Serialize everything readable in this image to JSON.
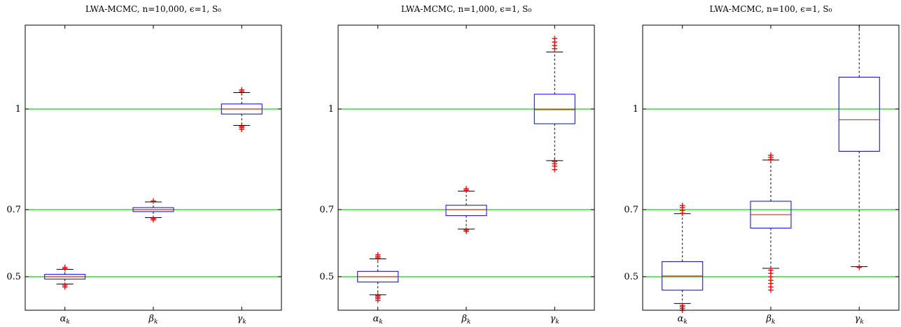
{
  "figure": {
    "panels": [
      {
        "title": "LWA-MCMC, n=10,000, ϵ=1, S₀"
      },
      {
        "title": "LWA-MCMC, n=1,000, ϵ=1, S₀"
      },
      {
        "title": "LWA-MCMC, n=100, ϵ=1, S₀"
      }
    ]
  },
  "colors": {
    "box": "#0000ff",
    "median": "#ff0000",
    "reference_line": "#00dd00",
    "outlier": "#ff0000",
    "whisker": "#000000"
  },
  "chart_data": [
    {
      "type": "box",
      "title": "LWA-MCMC, n=10,000, ϵ=1, S₀",
      "categories": [
        "αk",
        "βk",
        "γk"
      ],
      "yticks": [
        0.5,
        0.7,
        1
      ],
      "ytick_labels": [
        "0.5",
        "0.7",
        "1"
      ],
      "ylim": [
        0.4,
        1.25
      ],
      "reference_lines": [
        0.5,
        0.7,
        1
      ],
      "grid": false,
      "boxes": [
        {
          "label": "αk",
          "whisker_low": 0.478,
          "q1": 0.493,
          "median": 0.5,
          "q3": 0.507,
          "whisker_high": 0.522,
          "outliers_low": [
            0.47,
            0.475
          ],
          "outliers_high": [
            0.524,
            0.528
          ]
        },
        {
          "label": "βk",
          "whisker_low": 0.676,
          "q1": 0.694,
          "median": 0.7,
          "q3": 0.706,
          "whisker_high": 0.723,
          "outliers_low": [
            0.67,
            0.674
          ],
          "outliers_high": [
            0.726
          ]
        },
        {
          "label": "γk",
          "whisker_low": 0.951,
          "q1": 0.985,
          "median": 1.0,
          "q3": 1.015,
          "whisker_high": 1.049,
          "outliers_low": [
            0.94,
            0.945,
            0.949
          ],
          "outliers_high": [
            1.052,
            1.057
          ]
        }
      ]
    },
    {
      "type": "box",
      "title": "LWA-MCMC, n=1,000, ϵ=1, S₀",
      "categories": [
        "αk",
        "βk",
        "γk"
      ],
      "yticks": [
        0.5,
        0.7,
        1
      ],
      "ytick_labels": [
        "0.5",
        "0.7",
        "1"
      ],
      "ylim": [
        0.4,
        1.25
      ],
      "reference_lines": [
        0.5,
        0.7,
        1
      ],
      "grid": false,
      "boxes": [
        {
          "label": "αk",
          "whisker_low": 0.446,
          "q1": 0.484,
          "median": 0.5,
          "q3": 0.516,
          "whisker_high": 0.553,
          "outliers_low": [
            0.43,
            0.435,
            0.44,
            0.444
          ],
          "outliers_high": [
            0.556,
            0.56,
            0.566
          ]
        },
        {
          "label": "βk",
          "whisker_low": 0.642,
          "q1": 0.682,
          "median": 0.7,
          "q3": 0.713,
          "whisker_high": 0.755,
          "outliers_low": [
            0.635,
            0.64
          ],
          "outliers_high": [
            0.758,
            0.762
          ]
        },
        {
          "label": "γk",
          "whisker_low": 0.846,
          "q1": 0.956,
          "median": 0.998,
          "q3": 1.044,
          "whisker_high": 1.17,
          "outliers_low": [
            0.82,
            0.83,
            0.838,
            0.844
          ],
          "outliers_high": [
            1.18,
            1.19,
            1.2,
            1.21
          ]
        }
      ]
    },
    {
      "type": "box",
      "title": "LWA-MCMC, n=100, ϵ=1, S₀",
      "categories": [
        "αk",
        "βk",
        "γk"
      ],
      "yticks": [
        0.5,
        0.7,
        1
      ],
      "ytick_labels": [
        "0.5",
        "0.7",
        "1"
      ],
      "ylim": [
        0.4,
        1.25
      ],
      "reference_lines": [
        0.5,
        0.7,
        1
      ],
      "grid": false,
      "boxes": [
        {
          "label": "αk",
          "whisker_low": 0.42,
          "q1": 0.46,
          "median": 0.502,
          "q3": 0.545,
          "whisker_high": 0.688,
          "outliers_low": [
            0.4,
            0.405,
            0.41,
            0.415
          ],
          "outliers_high": [
            0.69,
            0.698,
            0.706,
            0.712
          ]
        },
        {
          "label": "βk",
          "whisker_low": 0.525,
          "q1": 0.645,
          "median": 0.685,
          "q3": 0.725,
          "whisker_high": 0.848,
          "outliers_low": [
            0.46,
            0.47,
            0.48,
            0.49,
            0.5,
            0.51,
            0.52
          ],
          "outliers_high": [
            0.85,
            0.856,
            0.862
          ]
        },
        {
          "label": "γk",
          "whisker_low": 0.53,
          "q1": 0.874,
          "median": 0.968,
          "q3": 1.095,
          "whisker_high": 1.25,
          "outliers_low": [
            0.528
          ],
          "outliers_high": []
        }
      ]
    }
  ]
}
